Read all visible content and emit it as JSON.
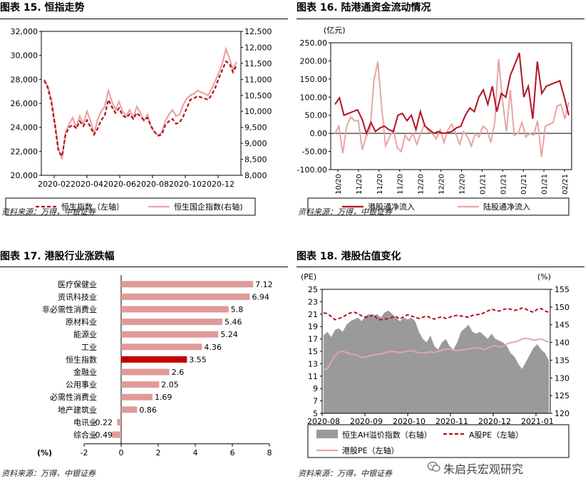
{
  "colors": {
    "dark_red": "#b3121f",
    "pink": "#e8a4a4",
    "bar": "#e09a9a",
    "highlight": "#c00000",
    "gray": "#9a9a9a"
  },
  "icon": "wechat-icon",
  "watermark": "朱启兵宏观研究",
  "source_text": "资料来源：万得，中银证券",
  "charts": [
    {
      "title": "图表 15. 恒指走势",
      "chart_data": {
        "type": "line",
        "x_ticks": [
          "2020-02",
          "2020-04",
          "2020-06",
          "2020-08",
          "2020-10",
          "2020-12"
        ],
        "y_left": {
          "range": [
            20000,
            32000
          ],
          "ticks": [
            "20,000",
            "22,000",
            "24,000",
            "26,000",
            "28,000",
            "30,000",
            "32,000"
          ]
        },
        "y_right": {
          "range": [
            8000,
            12500
          ],
          "ticks": [
            "8,000",
            "8,500",
            "9,000",
            "9,500",
            "10,000",
            "10,500",
            "11,000",
            "11,500",
            "12,000",
            "12,500"
          ]
        },
        "series": [
          {
            "name": "恒生指数（左轴）",
            "axis": "left",
            "style": "dashed",
            "values": [
              27900,
              27300,
              26100,
              24200,
              22000,
              21600,
              23400,
              24000,
              24200,
              23900,
              24500,
              24100,
              24600,
              24000,
              23400,
              23900,
              24600,
              25000,
              26300,
              25700,
              25200,
              25600,
              25000,
              24800,
              25100,
              24700,
              25200,
              24900,
              24600,
              24800,
              24100,
              23600,
              23300,
              23400,
              24200,
              24500,
              24700,
              24300,
              24400,
              24900,
              25600,
              26300,
              26400,
              26600,
              26500,
              26400,
              26300,
              26700,
              27300,
              28100,
              28800,
              29500,
              29300,
              28600,
              29200
            ]
          },
          {
            "name": "恒生国企指数(右轴)",
            "axis": "right",
            "style": "solid",
            "values": [
              11000,
              10800,
              10400,
              9650,
              8850,
              8500,
              9350,
              9600,
              9800,
              9500,
              9850,
              9600,
              10000,
              9700,
              9300,
              9750,
              10000,
              10150,
              10650,
              10300,
              10050,
              10300,
              10000,
              9850,
              10050,
              9800,
              10150,
              9950,
              9700,
              9900,
              9500,
              9350,
              9250,
              9350,
              9700,
              9900,
              10050,
              9850,
              9900,
              10200,
              10400,
              10500,
              10550,
              10650,
              10600,
              10550,
              10500,
              10700,
              10950,
              11200,
              11500,
              11950,
              11650,
              11300,
              11550
            ]
          }
        ]
      }
    },
    {
      "title": "图表 16. 陆港通资金流动情况",
      "chart_data": {
        "type": "line",
        "y_unit": "(亿元)",
        "x_ticks": [
          "10/20",
          "11/20",
          "11/20",
          "11/20",
          "12/20",
          "12/20",
          "12/20",
          "01/21",
          "01/21",
          "01/21",
          "01/21",
          "02/21"
        ],
        "y": {
          "range": [
            -100,
            250
          ],
          "ticks": [
            "-100.00",
            "-50.00",
            "0.00",
            "50.00",
            "100.00",
            "150.00",
            "200.00",
            "250.00"
          ]
        },
        "series": [
          {
            "name": "港股通净流入",
            "values": [
              80,
              98,
              50,
              55,
              60,
              65,
              40,
              0,
              30,
              5,
              15,
              20,
              10,
              5,
              50,
              55,
              35,
              50,
              10,
              60,
              20,
              10,
              0,
              5,
              0,
              2,
              5,
              15,
              20,
              50,
              70,
              60,
              100,
              120,
              80,
              130,
              60,
              110,
              100,
              160,
              190,
              222,
              100,
              130,
              40,
              198,
              110,
              130,
              135,
              140,
              145,
              100,
              50
            ]
          },
          {
            "name": "陆股通净流入",
            "values": [
              0,
              20,
              -55,
              20,
              45,
              35,
              35,
              -45,
              -10,
              10,
              145,
              198,
              70,
              -35,
              -10,
              10,
              -40,
              -50,
              -5,
              -20,
              0,
              -30,
              0,
              25,
              5,
              0,
              -15,
              10,
              -25,
              10,
              25,
              0,
              -30,
              5,
              -10,
              -35,
              0,
              -10,
              20,
              10,
              -25,
              30,
              205,
              90,
              5,
              120,
              -5,
              0,
              30,
              -10,
              0,
              -5,
              35,
              -65,
              20,
              25,
              30,
              75,
              80,
              40,
              85
            ]
          }
        ]
      }
    },
    {
      "title": "图表 17. 港股行业涨跌幅",
      "chart_data": {
        "type": "bar",
        "orientation": "horizontal",
        "x_unit": "(%)",
        "x": {
          "range": [
            -2,
            8
          ],
          "ticks": [
            "-2",
            "0",
            "2",
            "4",
            "6",
            "8"
          ]
        },
        "categories": [
          "医疗保健业",
          "资讯科技业",
          "非必需性消费业",
          "原材料业",
          "能源业",
          "工业",
          "恒生指数",
          "金融业",
          "公用事业",
          "必需性消费业",
          "地产建筑业",
          "电讯业",
          "综合业"
        ],
        "values": [
          7.12,
          6.94,
          5.8,
          5.46,
          5.24,
          4.36,
          3.55,
          2.6,
          2.05,
          1.69,
          0.86,
          -0.22,
          -0.49
        ],
        "value_labels": [
          "7.12",
          "6.94",
          "5.8",
          "5.46",
          "5.24",
          "4.36",
          "3.55",
          "2.6",
          "2.05",
          "1.69",
          "0.86",
          "-0.22",
          "-0.49"
        ],
        "highlight": "恒生指数"
      }
    },
    {
      "title": "图表 18. 港股估值变化",
      "chart_data": {
        "type": "area",
        "y_left_unit": "(PE)",
        "y_right_unit": "(%)",
        "x_ticks": [
          "2020-08",
          "2020-09",
          "2020-10",
          "2020-11",
          "2020-12",
          "2021-01"
        ],
        "y_left": {
          "range": [
            5,
            25
          ],
          "ticks": [
            "5",
            "7",
            "9",
            "11",
            "13",
            "15",
            "17",
            "19",
            "21",
            "23",
            "25"
          ]
        },
        "y_right": {
          "range": [
            120,
            155
          ],
          "ticks": [
            "120",
            "125",
            "130",
            "135",
            "140",
            "145",
            "150",
            "155"
          ]
        },
        "series": [
          {
            "name": "恒生AH溢价指数（右轴）",
            "axis": "right",
            "style": "area",
            "values": [
              142,
              143,
              141.5,
              143.5,
              144,
              143,
              145,
              146,
              146.5,
              147,
              146,
              147.5,
              148,
              147.5,
              148,
              147,
              148.5,
              149,
              148,
              147,
              146,
              147,
              146.5,
              147,
              146,
              143,
              141,
              140,
              142,
              139,
              138,
              140,
              141,
              139,
              138,
              140,
              143,
              144,
              145,
              143,
              142.5,
              143,
              142,
              141,
              142.5,
              141,
              140.5,
              140,
              139,
              137,
              136,
              134,
              132.5,
              134.5,
              136.5,
              138.5,
              139.5,
              138,
              137,
              135
            ]
          },
          {
            "name": "A股PE（左轴）",
            "axis": "left",
            "style": "dashed",
            "values": [
              21.2,
              21.1,
              20.6,
              20.1,
              20.3,
              20.5,
              20.9,
              21.2,
              21.3,
              21.1,
              20.7,
              20.5,
              20.6,
              20.9,
              20.3,
              20.1,
              20.2,
              20.3,
              20.5,
              20.6,
              20.2,
              20.6,
              20.9,
              20.7,
              20.5,
              20.3,
              20.5,
              20.7,
              20.4,
              20.2,
              20.4,
              20.6,
              20.3,
              20.5,
              20.7,
              20.8,
              20.7,
              20.6,
              20.5,
              20.8,
              20.9,
              21.0,
              21.2,
              21.5,
              21.8,
              21.6,
              21.5,
              21.7,
              21.9,
              21.8,
              21.6,
              21.7,
              22.0,
              21.8,
              21.5,
              21.3,
              21.8,
              21.9,
              21.5,
              21.3
            ]
          },
          {
            "name": "港股PE（左轴）",
            "axis": "left",
            "style": "solid",
            "values": [
              12.0,
              12.2,
              13.3,
              14.3,
              14.9,
              15.0,
              14.8,
              14.6,
              14.5,
              14.3,
              14.0,
              14.1,
              14.3,
              14.4,
              14.5,
              14.6,
              14.8,
              14.9,
              15.0,
              14.9,
              14.8,
              14.9,
              15.0,
              15.1,
              14.9,
              14.8,
              14.7,
              14.8,
              14.9,
              14.8,
              15.0,
              15.2,
              15.3,
              15.4,
              15.2,
              15.1,
              15.2,
              15.3,
              15.4,
              15.5,
              15.6,
              15.5,
              15.3,
              15.5,
              15.8,
              15.9,
              15.7,
              15.8,
              16.2,
              16.4,
              16.5,
              16.7,
              17.0,
              17.1,
              17.0,
              16.8,
              16.9,
              17.0,
              16.7,
              16.5
            ]
          }
        ]
      }
    }
  ]
}
